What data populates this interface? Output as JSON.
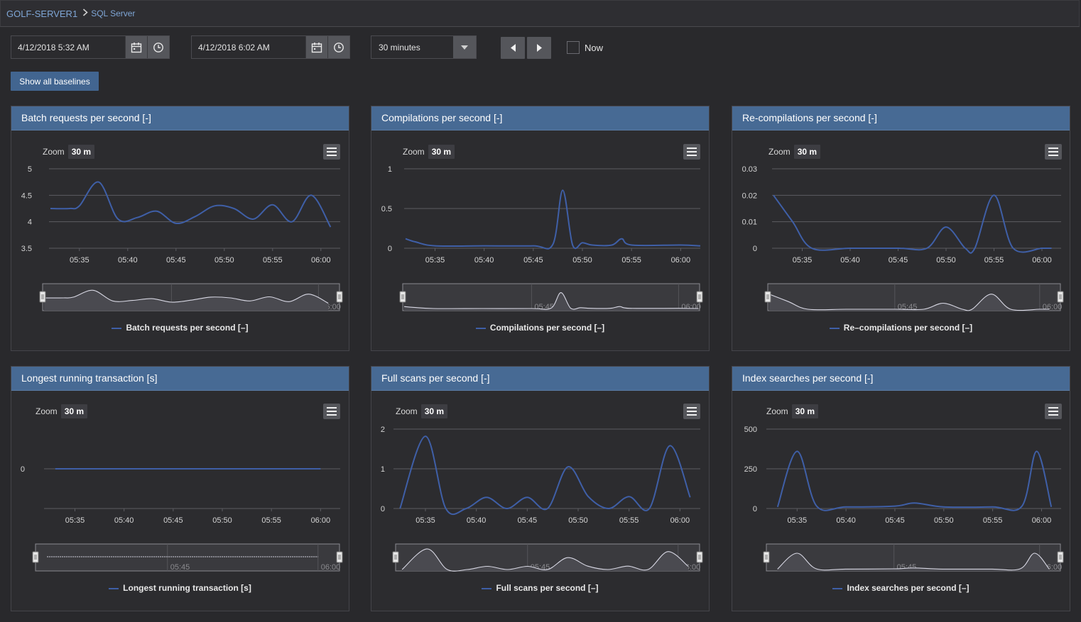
{
  "breadcrumb": {
    "root": "GOLF-SERVER1",
    "leaf": "SQL Server"
  },
  "toolbar": {
    "from_date": "4/12/2018 5:32 AM",
    "to_date": "4/12/2018 6:02 AM",
    "range_select": "30 minutes",
    "now_label": "Now",
    "now_checked": false,
    "show_baselines_label": "Show all baselines"
  },
  "colors": {
    "header": "#476a94",
    "series": "#3f5fa7",
    "button": "#426590"
  },
  "panels": [
    {
      "title": "Batch requests per second [-]",
      "zoom_label": "Zoom",
      "zoom_value": "30 m",
      "legend": "Batch requests per second [–]"
    },
    {
      "title": "Compilations per second [-]",
      "zoom_label": "Zoom",
      "zoom_value": "30 m",
      "legend": "Compilations per second [–]"
    },
    {
      "title": "Re-compilations per second [-]",
      "zoom_label": "Zoom",
      "zoom_value": "30 m",
      "legend": "Re–compilations per second [–]"
    },
    {
      "title": "Longest running transaction [s]",
      "zoom_label": "Zoom",
      "zoom_value": "30 m",
      "legend": "Longest running transaction [s]"
    },
    {
      "title": "Full scans per second [-]",
      "zoom_label": "Zoom",
      "zoom_value": "30 m",
      "legend": "Full scans per second [–]"
    },
    {
      "title": "Index searches per second [-]",
      "zoom_label": "Zoom",
      "zoom_value": "30 m",
      "legend": "Index searches per second [–]"
    }
  ],
  "chart_data": [
    {
      "type": "line",
      "title": "Batch requests per second [-]",
      "x_ticks": [
        "05:35",
        "05:40",
        "05:45",
        "05:50",
        "05:55",
        "06:00"
      ],
      "y_ticks": [
        "3.5",
        "4",
        "4.5",
        "5"
      ],
      "ylim": [
        3.5,
        5
      ],
      "xlim_minutes": [
        "05:32",
        "06:02"
      ],
      "navigator_ticks": [
        "05:45",
        "06:00"
      ],
      "series": [
        {
          "name": "Batch requests per second [–]",
          "x": [
            "05:32",
            "05:34",
            "05:35",
            "05:37",
            "05:39",
            "05:41",
            "05:43",
            "05:45",
            "05:47",
            "05:49",
            "05:51",
            "05:53",
            "05:55",
            "05:57",
            "05:59",
            "06:01"
          ],
          "y": [
            4.25,
            4.25,
            4.3,
            4.75,
            4.05,
            4.08,
            4.2,
            3.97,
            4.1,
            4.3,
            4.25,
            4.05,
            4.32,
            4.0,
            4.5,
            3.9
          ]
        }
      ]
    },
    {
      "type": "line",
      "title": "Compilations per second [-]",
      "x_ticks": [
        "05:35",
        "05:40",
        "05:45",
        "05:50",
        "05:55",
        "06:00"
      ],
      "y_ticks": [
        "0",
        "0.5",
        "1"
      ],
      "ylim": [
        0,
        1
      ],
      "xlim_minutes": [
        "05:32",
        "06:02"
      ],
      "navigator_ticks": [
        "05:45",
        "06:00"
      ],
      "series": [
        {
          "name": "Compilations per second [–]",
          "x": [
            "05:32",
            "05:33",
            "05:35",
            "05:40",
            "05:45",
            "05:47",
            "05:48",
            "05:49",
            "05:50",
            "05:51",
            "05:53",
            "05:54",
            "05:55",
            "06:00",
            "06:02"
          ],
          "y": [
            0.12,
            0.08,
            0.03,
            0.03,
            0.03,
            0.05,
            0.73,
            0.04,
            0.07,
            0.04,
            0.04,
            0.12,
            0.04,
            0.04,
            0.03
          ]
        }
      ]
    },
    {
      "type": "line",
      "title": "Re-compilations per second [-]",
      "x_ticks": [
        "05:35",
        "05:40",
        "05:45",
        "05:50",
        "05:55",
        "06:00"
      ],
      "y_ticks": [
        "0",
        "0.01",
        "0.02",
        "0.03"
      ],
      "ylim": [
        0,
        0.03
      ],
      "xlim_minutes": [
        "05:32",
        "06:02"
      ],
      "navigator_ticks": [
        "05:45",
        "06:00"
      ],
      "series": [
        {
          "name": "Re–compilations per second [–]",
          "x": [
            "05:32",
            "05:34",
            "05:36",
            "05:40",
            "05:45",
            "05:48",
            "05:50",
            "05:52",
            "05:53",
            "05:55",
            "05:57",
            "06:00",
            "06:01"
          ],
          "y": [
            0.02,
            0.01,
            0.0,
            0.0,
            0.0,
            0.0,
            0.008,
            0.0,
            0.0,
            0.02,
            0.0,
            0.0,
            0.0
          ]
        }
      ]
    },
    {
      "type": "line",
      "title": "Longest running transaction [s]",
      "x_ticks": [
        "05:35",
        "05:40",
        "05:45",
        "05:50",
        "05:55",
        "06:00"
      ],
      "y_ticks": [
        "0"
      ],
      "ylim": [
        -1,
        1
      ],
      "xlim_minutes": [
        "05:32",
        "06:02"
      ],
      "navigator_ticks": [
        "05:45",
        "06:00"
      ],
      "series": [
        {
          "name": "Longest running transaction [s]",
          "x": [
            "05:33",
            "05:40",
            "05:50",
            "06:00"
          ],
          "y": [
            0,
            0,
            0,
            0
          ]
        }
      ]
    },
    {
      "type": "line",
      "title": "Full scans per second [-]",
      "x_ticks": [
        "05:35",
        "05:40",
        "05:45",
        "05:50",
        "05:55",
        "06:00"
      ],
      "y_ticks": [
        "0",
        "1",
        "2"
      ],
      "ylim": [
        0,
        2
      ],
      "xlim_minutes": [
        "05:32",
        "06:02"
      ],
      "navigator_ticks": [
        "05:45",
        "06:00"
      ],
      "series": [
        {
          "name": "Full scans per second [–]",
          "x": [
            "05:32.5",
            "05:35",
            "05:37",
            "05:39",
            "05:41",
            "05:43",
            "05:45",
            "05:47",
            "05:49",
            "05:51",
            "05:53",
            "05:55",
            "05:57",
            "05:59",
            "06:01"
          ],
          "y": [
            0,
            1.82,
            0,
            0,
            0.28,
            0,
            0.28,
            0,
            1.05,
            0.3,
            0,
            0.3,
            0,
            1.58,
            0.28
          ]
        }
      ]
    },
    {
      "type": "line",
      "title": "Index searches per second [-]",
      "x_ticks": [
        "05:35",
        "05:40",
        "05:45",
        "05:50",
        "05:55",
        "06:00"
      ],
      "y_ticks": [
        "0",
        "250",
        "500"
      ],
      "ylim": [
        0,
        500
      ],
      "xlim_minutes": [
        "05:32",
        "06:02"
      ],
      "navigator_ticks": [
        "05:45",
        "06:00"
      ],
      "series": [
        {
          "name": "Index searches per second [–]",
          "x": [
            "05:33",
            "05:35",
            "05:37",
            "05:40",
            "05:45",
            "05:47",
            "05:50",
            "05:55",
            "05:58",
            "05:59.5",
            "06:01"
          ],
          "y": [
            10,
            360,
            15,
            10,
            15,
            35,
            10,
            10,
            15,
            360,
            10
          ]
        }
      ]
    }
  ]
}
